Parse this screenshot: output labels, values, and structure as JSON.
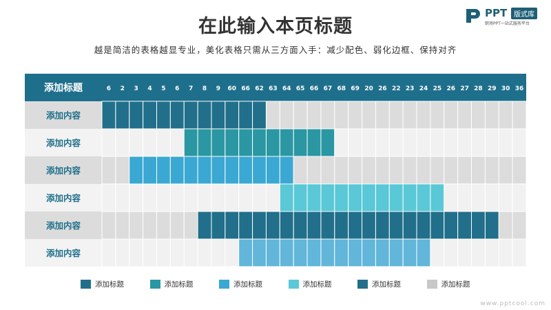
{
  "page": {
    "title": "在此输入本页标题",
    "subtitle": "越是简洁的表格越显专业，美化表格只需从三方面入手：减少配色、弱化边框、保持对齐"
  },
  "logo": {
    "text": "PPT",
    "badge": "版式库",
    "tagline": "职场PPT一站式服务平台"
  },
  "watermark": "www.pptcool.com",
  "colors": {
    "header_bg": "#1e6f8b",
    "row_label_text": "#1e6f8b",
    "empty_cell_light": "#f1f1f1",
    "empty_cell_dark": "#dcdcdc",
    "grid_line": "#ffffff"
  },
  "chart_data": {
    "type": "table",
    "header_label": "添加标题",
    "columns": [
      "6",
      "2",
      "3",
      "4",
      "5",
      "6",
      "7",
      "8",
      "9",
      "60",
      "66",
      "62",
      "63",
      "64",
      "65",
      "66",
      "67",
      "68",
      "69",
      "20",
      "26",
      "22",
      "23",
      "24",
      "25",
      "26",
      "27",
      "28",
      "29",
      "30",
      "36"
    ],
    "rows": [
      {
        "label": "添加内容",
        "start_col": 1,
        "end_col": 12,
        "color": "#216f8a"
      },
      {
        "label": "添加内容",
        "start_col": 7,
        "end_col": 17,
        "color": "#2a97a3"
      },
      {
        "label": "添加内容",
        "start_col": 3,
        "end_col": 14,
        "color": "#3aa8d2"
      },
      {
        "label": "添加内容",
        "start_col": 14,
        "end_col": 25,
        "color": "#5ac8d6"
      },
      {
        "label": "添加内容",
        "start_col": 8,
        "end_col": 29,
        "color": "#216f8a"
      },
      {
        "label": "添加内容",
        "start_col": 11,
        "end_col": 24,
        "color": "#61b6da"
      }
    ],
    "legend": [
      {
        "label": "添加标题",
        "color": "#216f8a"
      },
      {
        "label": "添加标题",
        "color": "#2a97a3"
      },
      {
        "label": "添加标题",
        "color": "#3aa8d2"
      },
      {
        "label": "添加标题",
        "color": "#5ac8d6"
      },
      {
        "label": "添加标题",
        "color": "#216f8a"
      },
      {
        "label": "添加标题",
        "color": "#c8c8c8"
      }
    ]
  }
}
